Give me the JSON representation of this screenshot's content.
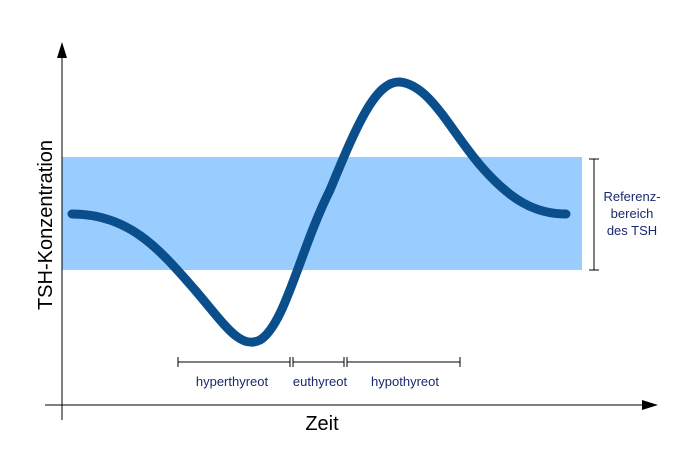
{
  "axes": {
    "y_label": "TSH-Konzentration",
    "x_label": "Zeit"
  },
  "reference": {
    "lines": [
      "Referenz-",
      "bereich",
      "des TSH"
    ]
  },
  "phases": [
    "hyperthyreot",
    "euthyreot",
    "hypothyreot"
  ]
}
